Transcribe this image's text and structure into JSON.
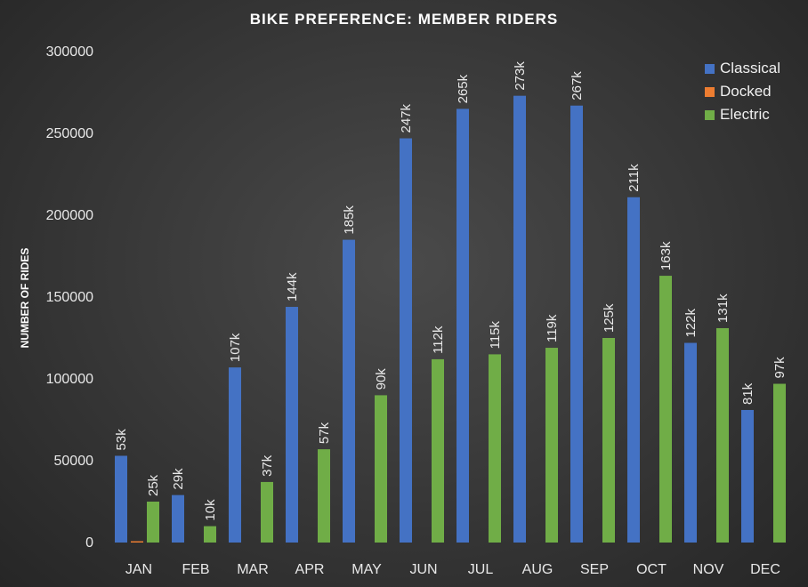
{
  "chart_data": {
    "type": "bar",
    "title": "BIKE PREFERENCE:  MEMBER RIDERS",
    "xlabel": "",
    "ylabel": "NUMBER OF RIDES",
    "ylim": [
      0,
      300000
    ],
    "yticks": [
      "0",
      "50000",
      "100000",
      "150000",
      "200000",
      "250000",
      "300000"
    ],
    "categories": [
      "JAN",
      "FEB",
      "MAR",
      "APR",
      "MAY",
      "JUN",
      "JUL",
      "AUG",
      "SEP",
      "OCT",
      "NOV",
      "DEC"
    ],
    "legend_position": "top-right",
    "grid": false,
    "series": [
      {
        "name": "Classical",
        "color": "#4472c4",
        "values": [
          53000,
          29000,
          107000,
          144000,
          185000,
          247000,
          265000,
          273000,
          267000,
          211000,
          122000,
          81000
        ],
        "labels": [
          "53k",
          "29k",
          "107k",
          "144k",
          "185k",
          "247k",
          "265k",
          "273k",
          "267k",
          "211k",
          "122k",
          "81k"
        ]
      },
      {
        "name": "Docked",
        "color": "#ed7d31",
        "values": [
          800,
          0,
          0,
          0,
          0,
          0,
          0,
          0,
          0,
          0,
          0,
          0
        ],
        "labels": [
          "",
          "",
          "",
          "",
          "",
          "",
          "",
          "",
          "",
          "",
          "",
          ""
        ]
      },
      {
        "name": "Electric",
        "color": "#70ad47",
        "values": [
          25000,
          10000,
          37000,
          57000,
          90000,
          112000,
          115000,
          119000,
          125000,
          163000,
          131000,
          97000
        ],
        "labels": [
          "25k",
          "10k",
          "37k",
          "57k",
          "90k",
          "112k",
          "115k",
          "119k",
          "125k",
          "163k",
          "131k",
          "97k"
        ]
      }
    ]
  }
}
